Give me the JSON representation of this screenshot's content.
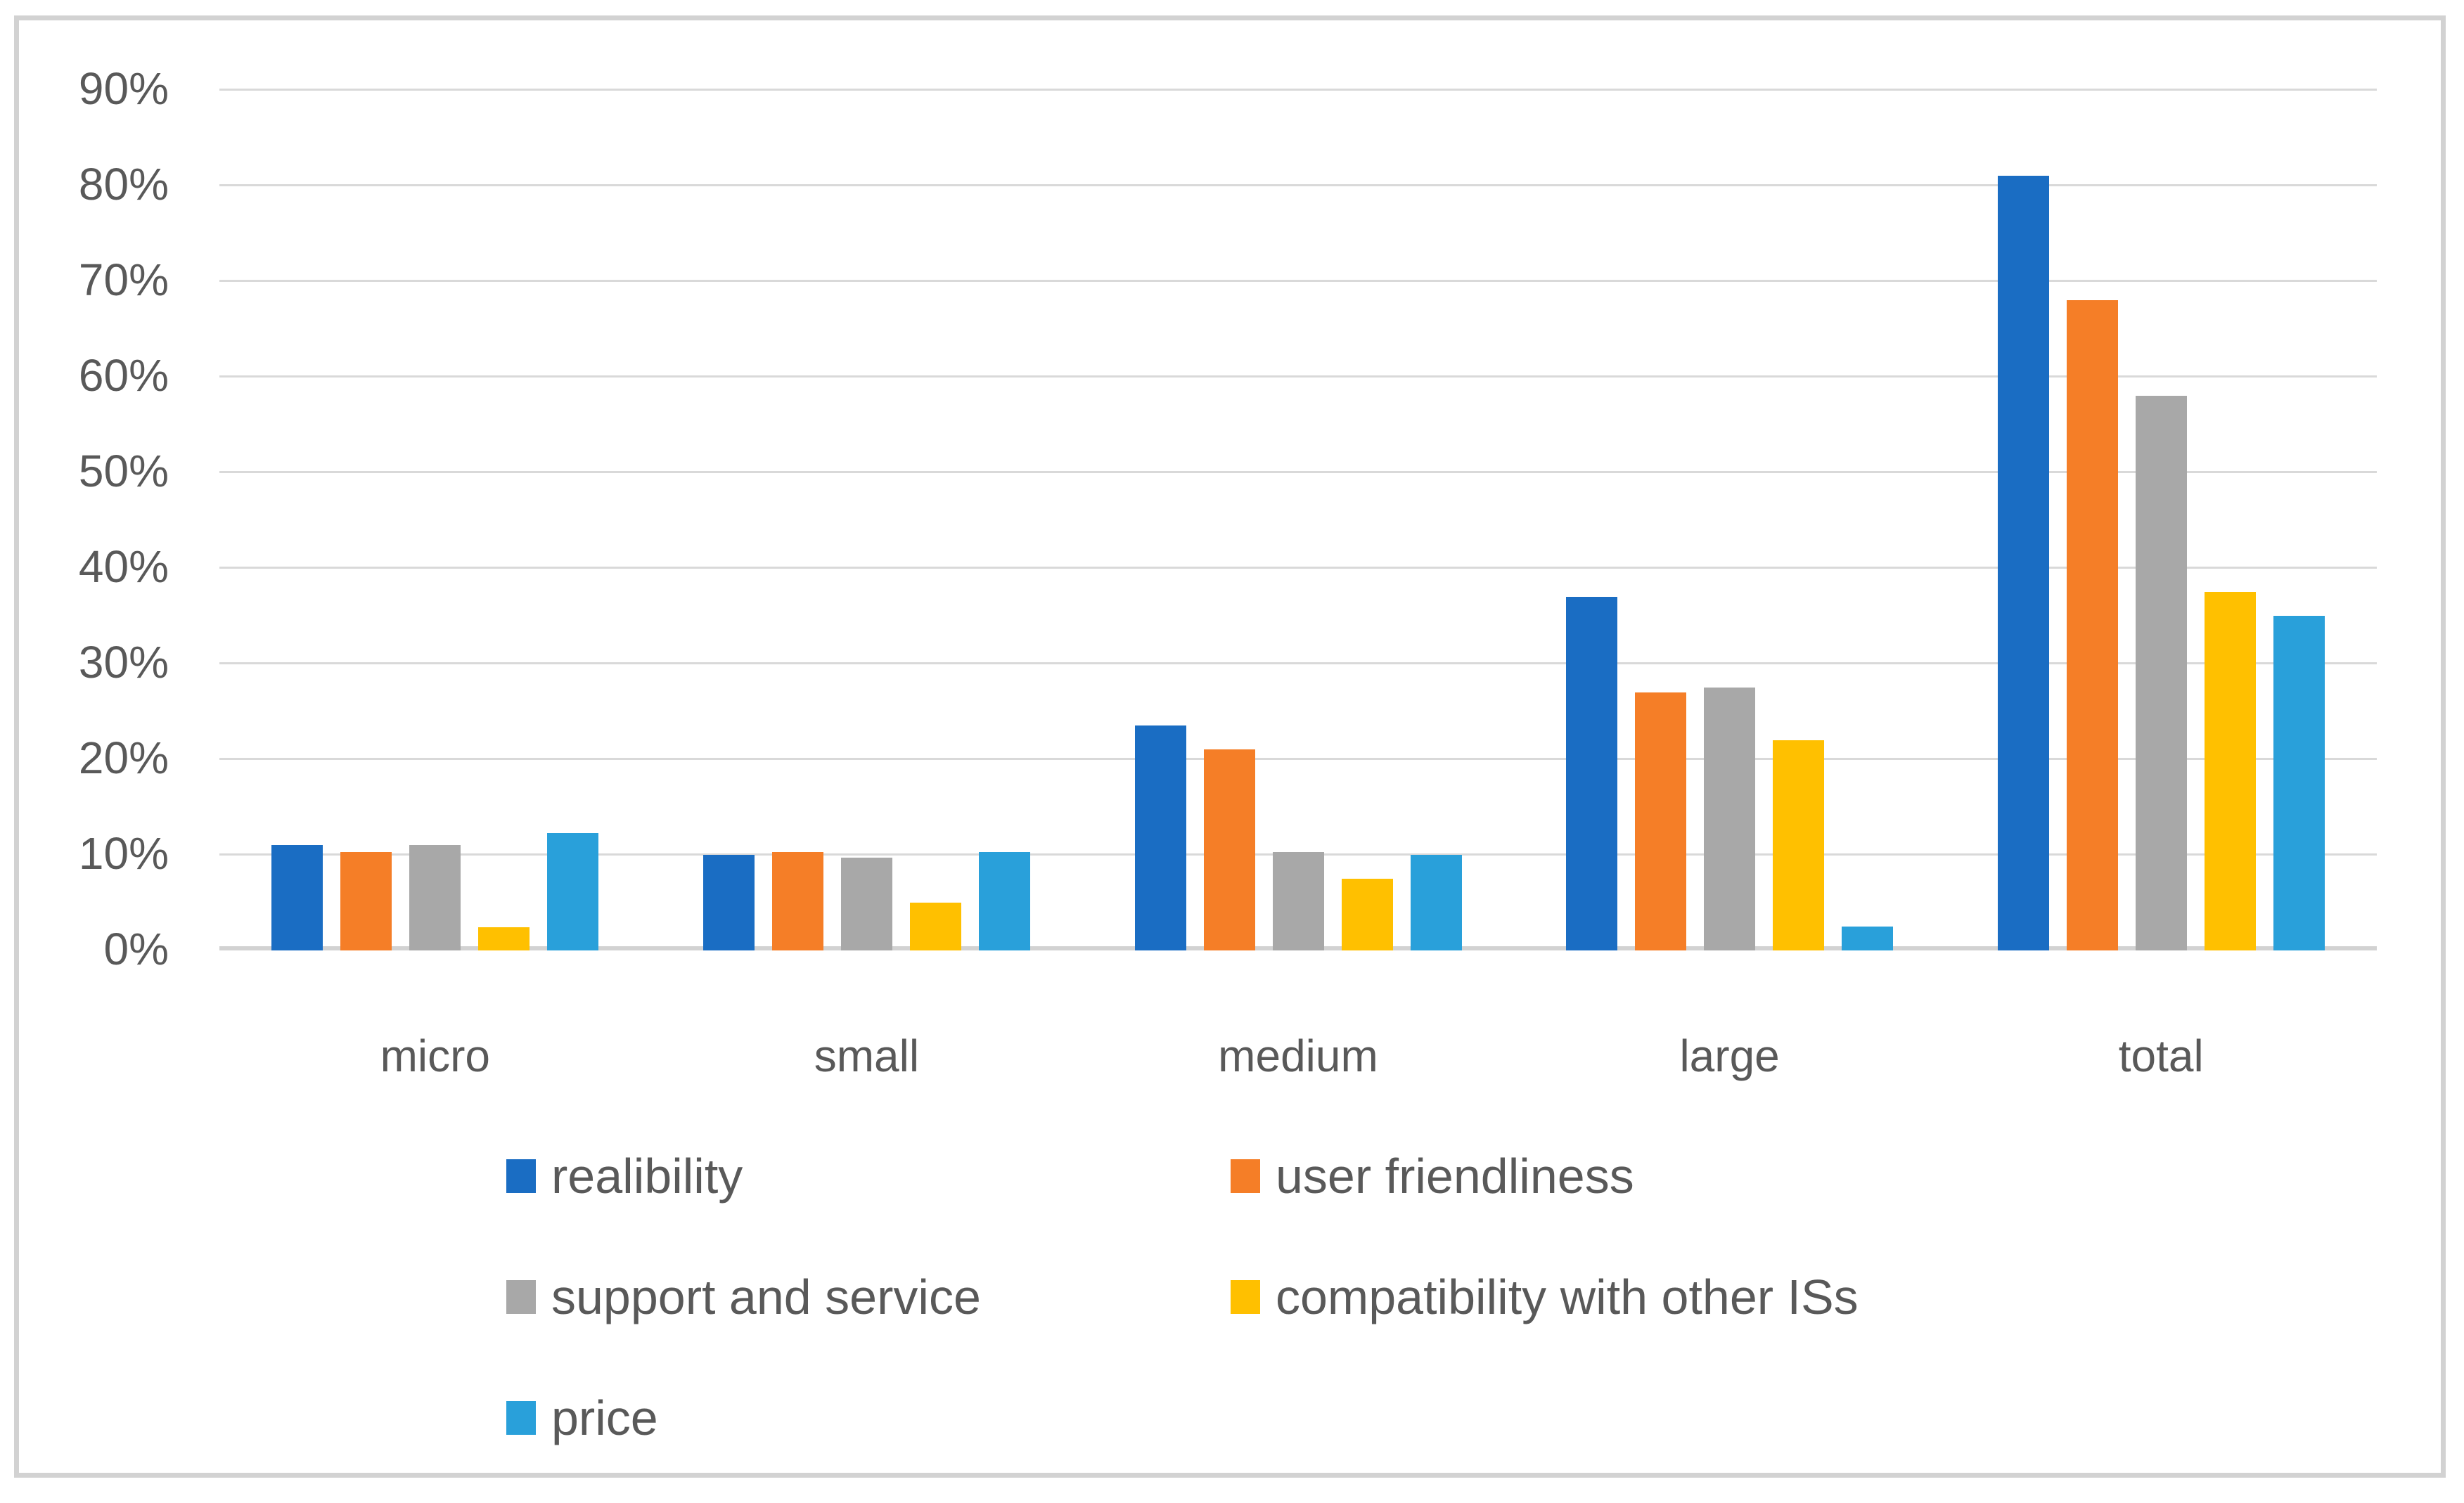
{
  "chart_data": {
    "type": "bar",
    "categories": [
      "micro",
      "small",
      "medium",
      "large",
      "total"
    ],
    "series": [
      {
        "name": "realibility",
        "color": "#1a6dc3",
        "values": [
          11,
          10,
          23.5,
          37,
          81
        ]
      },
      {
        "name": "user friendliness",
        "color": "#f57e27",
        "values": [
          10.3,
          10.3,
          21,
          27,
          68
        ]
      },
      {
        "name": "support and service",
        "color": "#a8a8a8",
        "values": [
          11,
          9.7,
          10.3,
          27.5,
          58
        ]
      },
      {
        "name": "compatibility with other ISs",
        "color": "#ffc000",
        "values": [
          2.4,
          5,
          7.5,
          22,
          37.5
        ]
      },
      {
        "name": "price",
        "color": "#29a0da",
        "values": [
          12.3,
          10.3,
          10,
          2.5,
          35
        ]
      }
    ],
    "y_ticks": [
      {
        "value": 0,
        "label": "0%"
      },
      {
        "value": 10,
        "label": "10%"
      },
      {
        "value": 20,
        "label": "20%"
      },
      {
        "value": 30,
        "label": "30%"
      },
      {
        "value": 40,
        "label": "40%"
      },
      {
        "value": 50,
        "label": "50%"
      },
      {
        "value": 60,
        "label": "60%"
      },
      {
        "value": 70,
        "label": "70%"
      },
      {
        "value": 80,
        "label": "80%"
      },
      {
        "value": 90,
        "label": "90%"
      }
    ],
    "ylim": [
      0,
      90
    ],
    "xlabel": "",
    "ylabel": "",
    "title": "",
    "grid": true,
    "legend_position": "bottom",
    "axis_text_color": "#595959",
    "gridline_color": "#d9d9d9"
  }
}
